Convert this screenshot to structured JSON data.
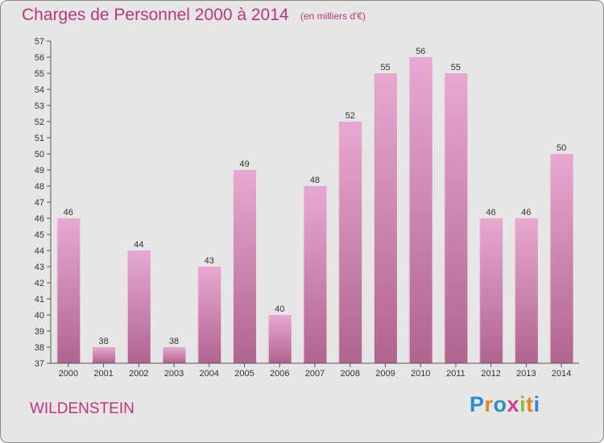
{
  "header": {
    "title": "Charges de Personnel 2000 à 2014",
    "subtitle": "(en milliers d'€)"
  },
  "footer": {
    "commune": "WILDENSTEIN",
    "brand_letters": [
      "P",
      "r",
      "o",
      "x",
      "i",
      "t",
      "i"
    ],
    "brand_colors": [
      "#2e8bd0",
      "#e8841f",
      "#2e8bd0",
      "#d83a8a",
      "#8cbf2e",
      "#e8841f",
      "#2e8bd0"
    ]
  },
  "colors": {
    "accent": "#c0337e",
    "bar_top": "#e7a9d1",
    "bar_bottom": "#b0648f",
    "background": "#e6e6e6"
  },
  "chart_data": {
    "type": "bar",
    "title": "Charges de Personnel 2000 à 2014",
    "subtitle": "(en milliers d'€)",
    "categories": [
      "2000",
      "2001",
      "2002",
      "2003",
      "2004",
      "2005",
      "2006",
      "2007",
      "2008",
      "2009",
      "2010",
      "2011",
      "2012",
      "2013",
      "2014"
    ],
    "values": [
      46,
      38,
      44,
      38,
      43,
      49,
      40,
      48,
      52,
      55,
      56,
      55,
      46,
      46,
      50
    ],
    "ylim": [
      37,
      57
    ],
    "ytick_step": 1,
    "grid": false,
    "legend": "none"
  }
}
